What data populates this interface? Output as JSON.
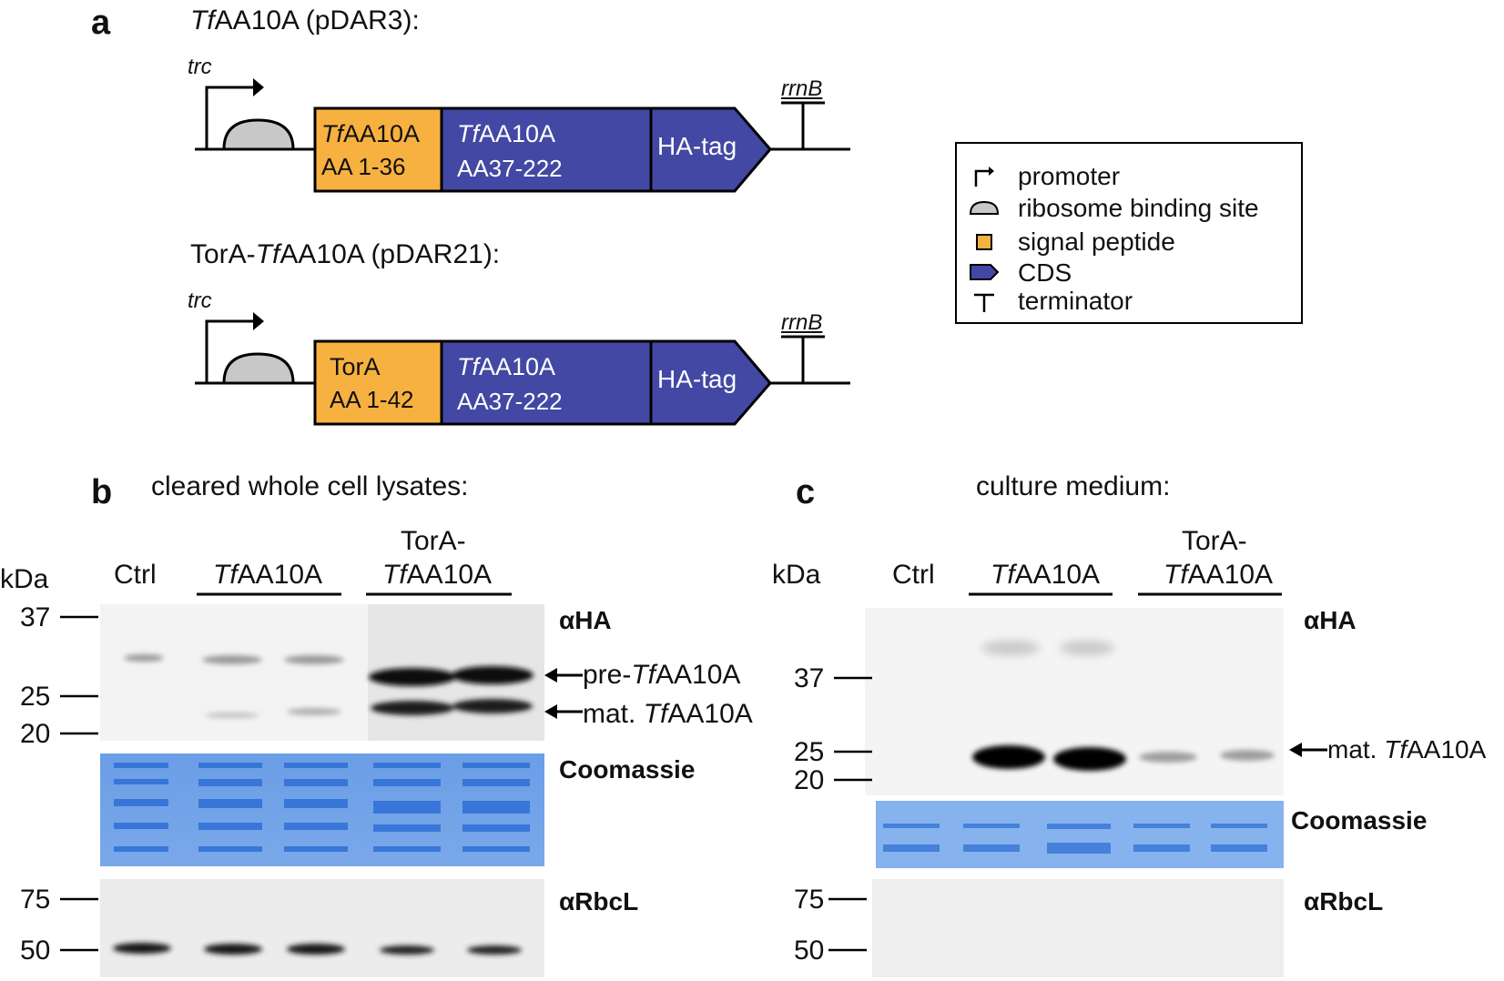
{
  "panel_a": {
    "letter": "a",
    "construct1": {
      "title_italic": "Tf",
      "title_rest": "AA10A (pDAR3):",
      "promoter": "trc",
      "terminator": "rrnB",
      "signal_line1_italic": "Tf",
      "signal_line1_rest": "AA10A",
      "signal_line2": "AA 1-36",
      "cds_line1_italic": "Tf",
      "cds_line1_rest": "AA10A",
      "cds_line2": "AA37-222",
      "tag": "HA-tag"
    },
    "construct2": {
      "title_plain": "TorA-",
      "title_italic": "Tf",
      "title_rest": "AA10A (pDAR21):",
      "promoter": "trc",
      "terminator": "rrnB",
      "signal_line1": "TorA",
      "signal_line2": "AA 1-42",
      "cds_line1_italic": "Tf",
      "cds_line1_rest": "AA10A",
      "cds_line2": "AA37-222",
      "tag": "HA-tag"
    },
    "legend": {
      "promoter": "promoter",
      "rbs": "ribosome binding site",
      "signal": "signal peptide",
      "cds": "CDS",
      "terminator": "terminator"
    },
    "colors": {
      "signal": "#f7b140",
      "cds": "#4248a3",
      "rbs": "#c8c8c8"
    }
  },
  "panel_b": {
    "letter": "b",
    "title": "cleared whole cell lysates:",
    "kda": "kDa",
    "lane_ctrl": "Ctrl",
    "group1_italic": "Tf",
    "group1_rest": "AA10A",
    "group2_line1": "TorA-",
    "group2_italic": "Tf",
    "group2_rest": "AA10A",
    "markers_ha": [
      "37",
      "25",
      "20"
    ],
    "markers_rbcl": [
      "75",
      "50"
    ],
    "blot1": "αHA",
    "blot2": "Coomassie",
    "blot3": "αRbcL",
    "arrow1_plain": "pre-",
    "arrow1_italic": "Tf",
    "arrow1_rest": "AA10A",
    "arrow2_plain": "mat. ",
    "arrow2_italic": "Tf",
    "arrow2_rest": "AA10A"
  },
  "panel_c": {
    "letter": "c",
    "title": "culture medium:",
    "kda": "kDa",
    "lane_ctrl": "Ctrl",
    "group1_italic": "Tf",
    "group1_rest": "AA10A",
    "group2_line1": "TorA-",
    "group2_italic": "Tf",
    "group2_rest": "AA10A",
    "markers_ha": [
      "37",
      "25",
      "20"
    ],
    "markers_rbcl": [
      "75",
      "50"
    ],
    "blot1": "αHA",
    "blot2": "Coomassie",
    "blot3": "αRbcL",
    "arrow1_plain": "mat. ",
    "arrow1_italic": "Tf",
    "arrow1_rest": "AA10A"
  }
}
